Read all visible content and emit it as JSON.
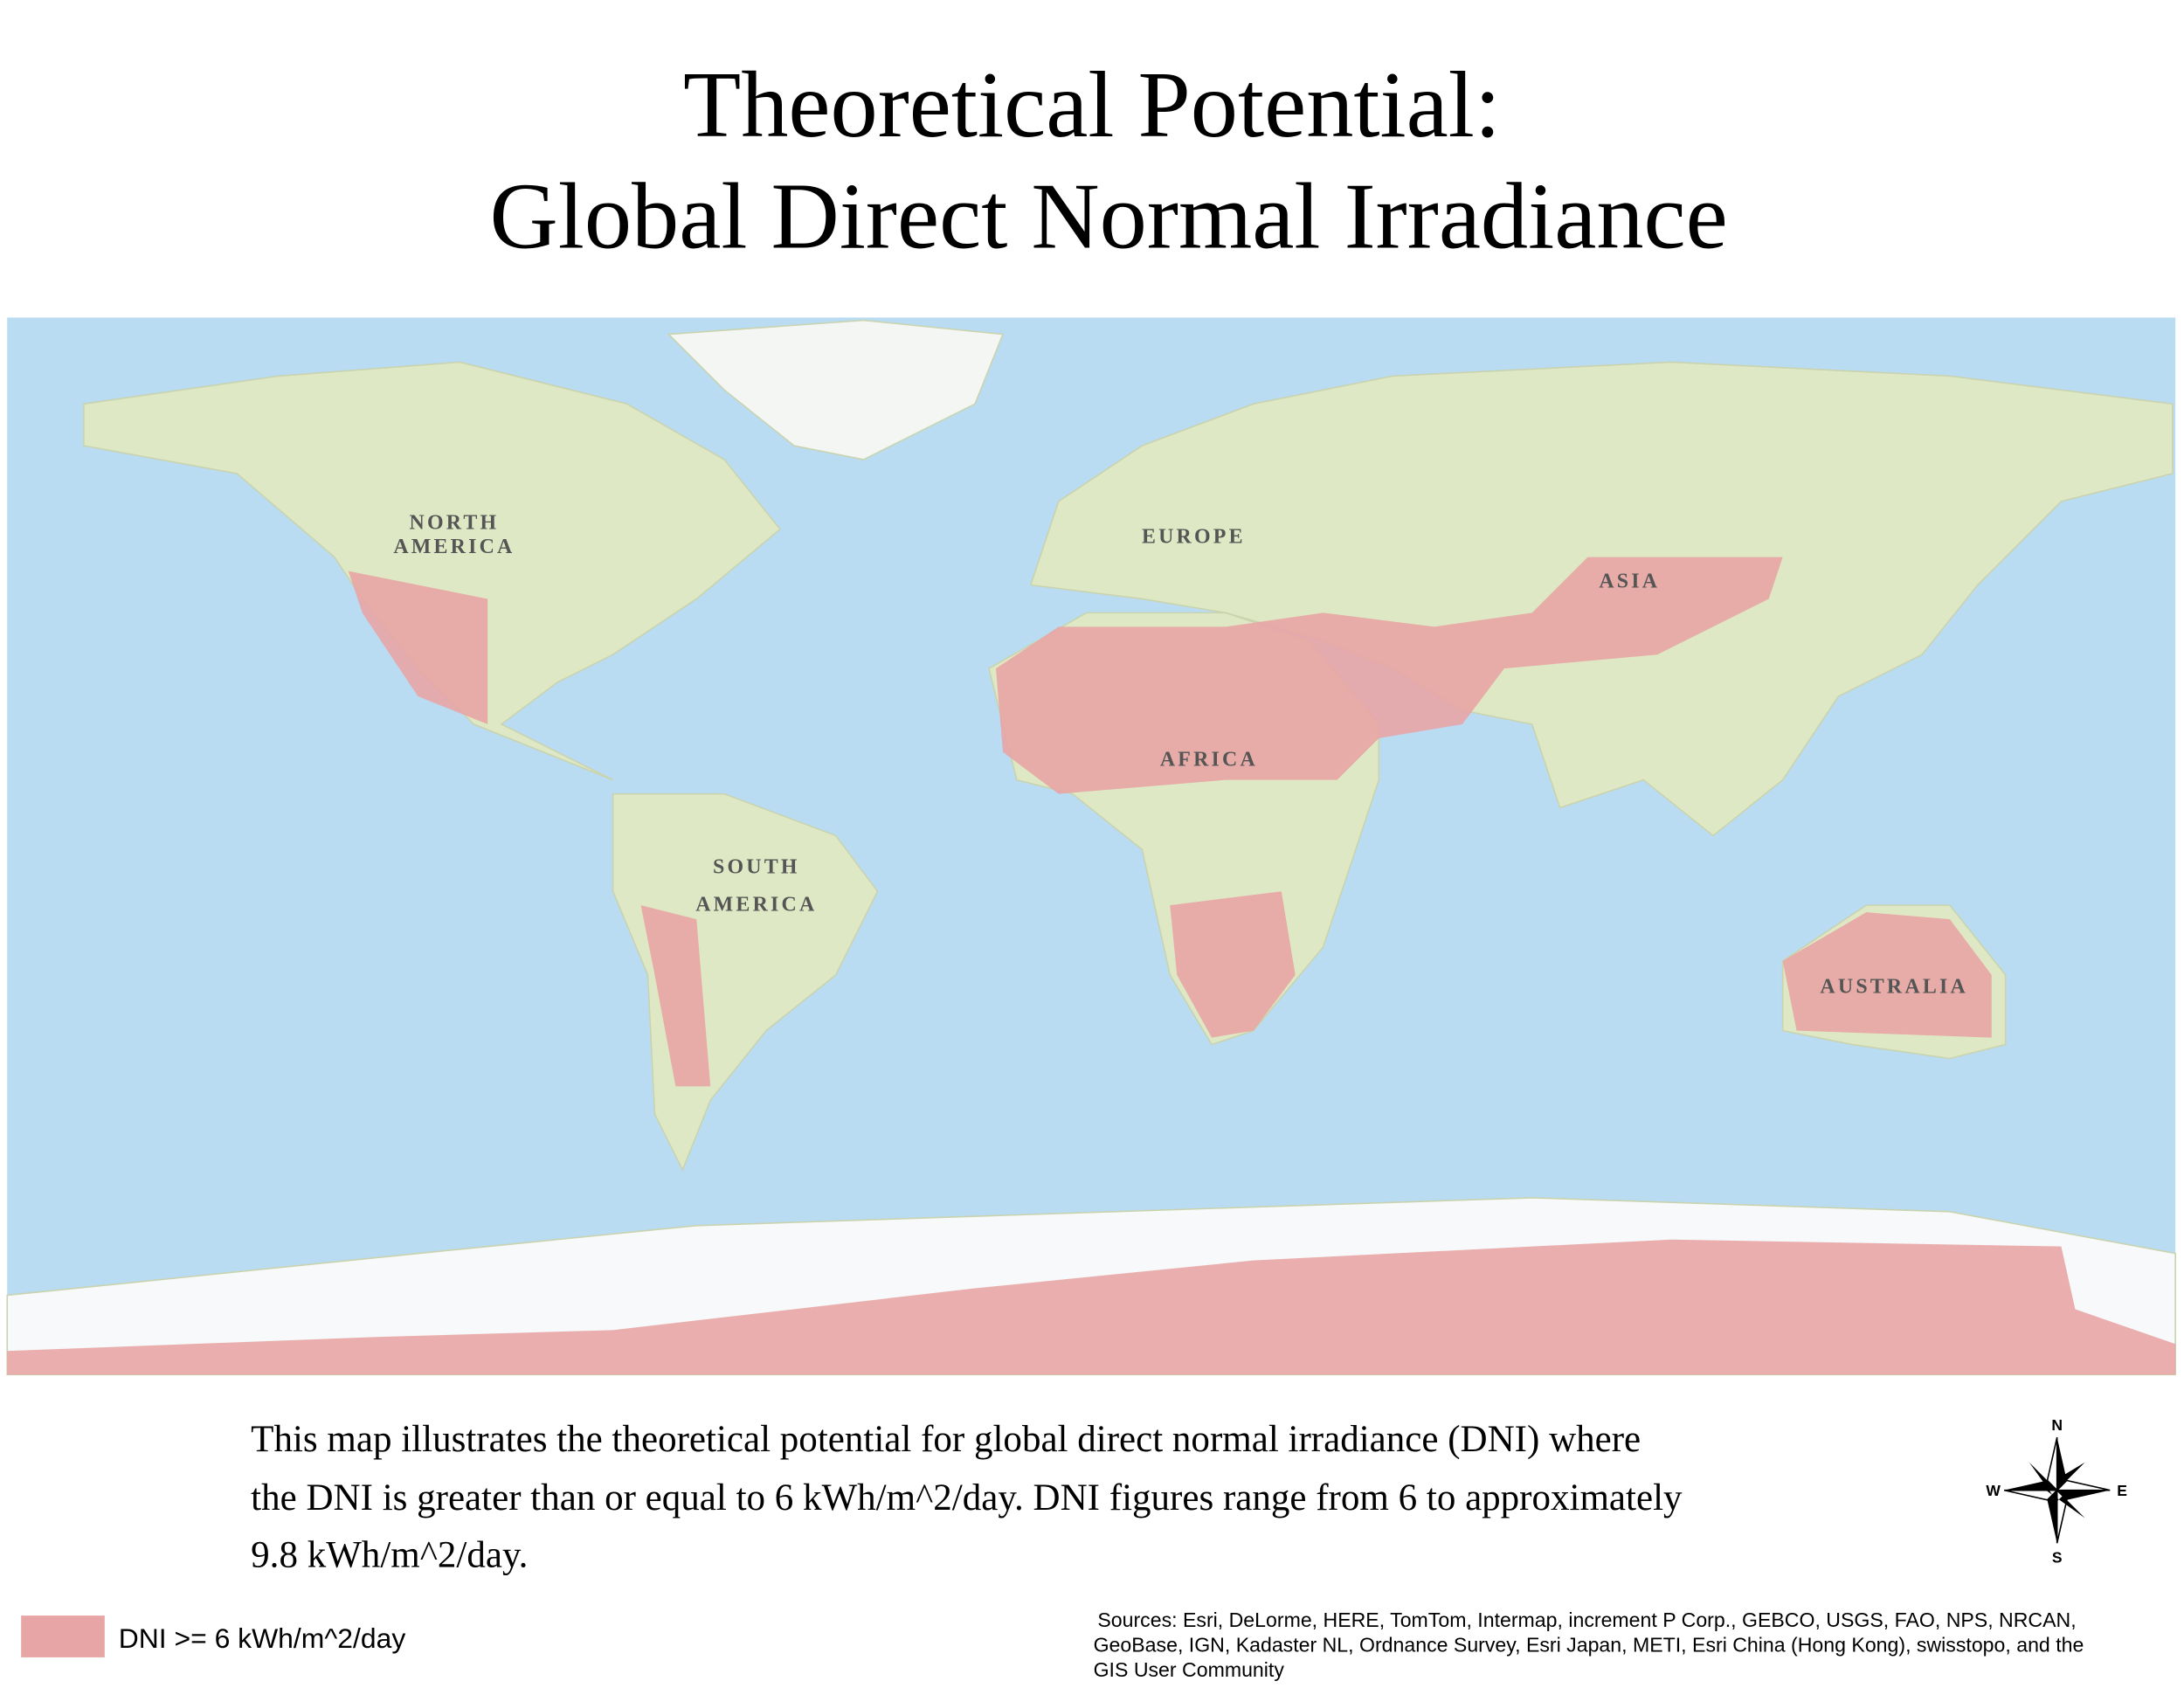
{
  "header": {
    "title": [
      "Theoretical Potential:",
      "Global Direct Normal Irradiance"
    ]
  },
  "map": {
    "labels": [
      "NORTH",
      "AMERICA",
      "EUROPE",
      "ASIA",
      "AFRICA",
      "SOUTH",
      "AMERICA",
      "AUSTRALIA"
    ]
  },
  "description": [
    "This map illustrates the theoretical potential for global direct normal irradiance (DNI) where",
    "the DNI is greater than or equal to 6 kWh/m^2/day. DNI figures range from 6 to approximately",
    "9.8 kWh/m^2/day."
  ],
  "legend": {
    "label": "DNI >= 6 kWh/m^2/day"
  },
  "compass": {
    "n": "N",
    "e": "E",
    "s": "S",
    "w": "W"
  },
  "sources": [
    "Sources: Esri, DeLorme, HERE, TomTom, Intermap, increment P Corp., GEBCO, USGS, FAO, NPS, NRCAN,",
    "GeoBase, IGN, Kadaster NL, Ordnance Survey, Esri Japan, METI, Esri China (Hong Kong), swisstopo, and the",
    "GIS User Community"
  ]
}
